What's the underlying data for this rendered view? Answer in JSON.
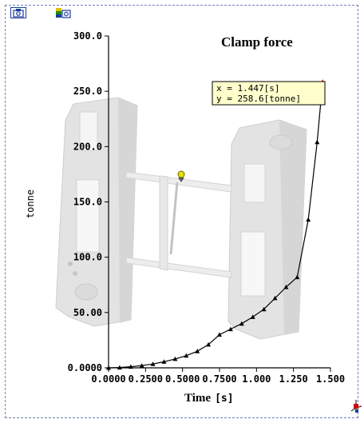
{
  "toolbar": {
    "icons": [
      "camera-icon",
      "layers-icon"
    ]
  },
  "chart_data": {
    "type": "line",
    "title": "Clamp force",
    "xlabel_main": "Time",
    "xlabel_unit": "[s]",
    "ylabel": "tonne",
    "xlim": [
      0,
      1.5
    ],
    "ylim": [
      0,
      300
    ],
    "x_ticks": [
      "0.0000",
      "0.2500",
      "0.5000",
      "0.7500",
      "1.000",
      "1.250",
      "1.500"
    ],
    "y_ticks": [
      "0.0000",
      "50.00",
      "100.0",
      "150.0",
      "200.0",
      "250.0",
      "300.0"
    ],
    "grid": false,
    "series": [
      {
        "color": "#000000",
        "x": [
          0.0,
          0.075,
          0.15,
          0.225,
          0.3,
          0.375,
          0.45,
          0.525,
          0.6,
          0.675,
          0.75,
          0.825,
          0.9,
          0.975,
          1.05,
          1.125,
          1.2,
          1.275,
          1.35,
          1.41,
          1.447
        ],
        "values": [
          0.0,
          0.3,
          1.0,
          2.0,
          3.5,
          5.5,
          8.0,
          11.0,
          15.0,
          21.0,
          30.0,
          35.0,
          40.0,
          46.0,
          53.0,
          63.0,
          73.0,
          82.0,
          134.0,
          204.0,
          258.6
        ]
      }
    ],
    "tooltip": {
      "line1": "x = 1.447[s]",
      "line2": "y = 258.6[tonne]",
      "marker_color": "#ff0000"
    }
  }
}
